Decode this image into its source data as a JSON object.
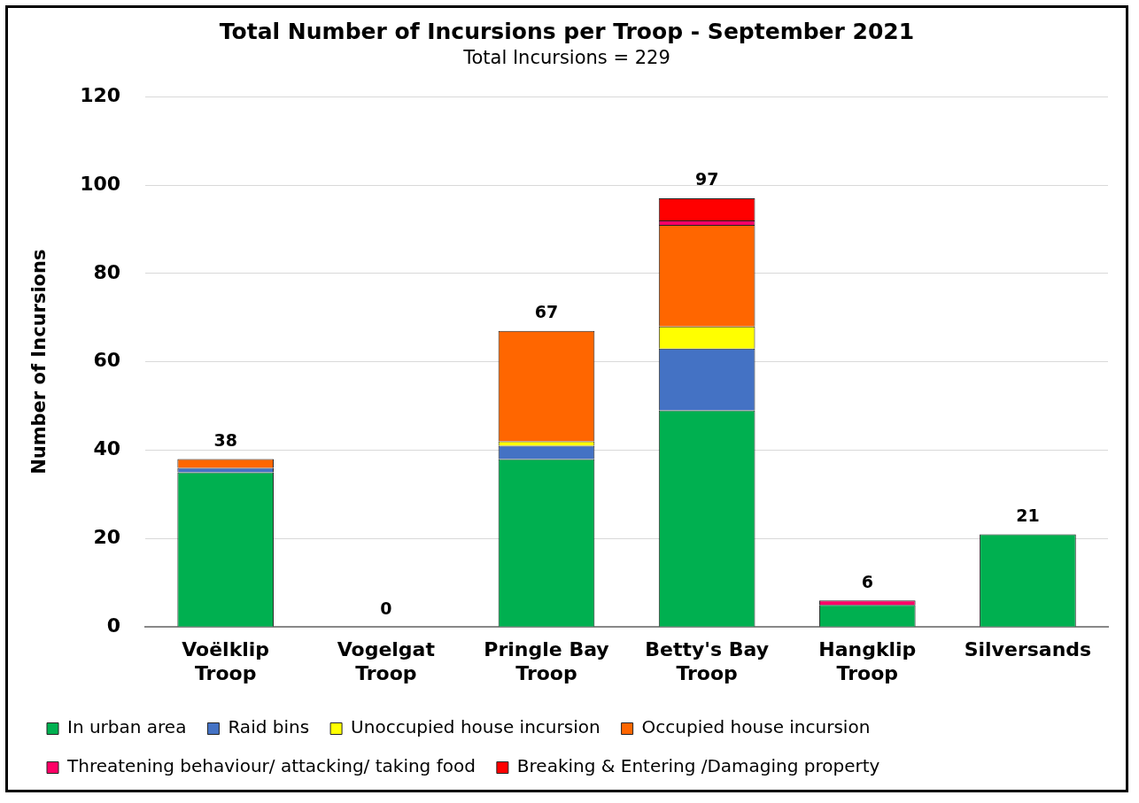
{
  "chart_data": {
    "type": "bar",
    "title": "Total Number of Incursions per Troop - September 2021",
    "subtitle": "Total Incursions = 229",
    "ylabel": "Number of Incursions",
    "categories": [
      "Voëlklip Troop",
      "Vogelgat Troop",
      "Pringle Bay Troop",
      "Betty's Bay Troop",
      "Hangklip Troop",
      "Silversands"
    ],
    "stacked": true,
    "series": [
      {
        "name": "In urban area",
        "color": "#00b050",
        "values": [
          35,
          0,
          38,
          49,
          5,
          21
        ]
      },
      {
        "name": "Raid bins",
        "color": "#4472c4",
        "values": [
          1,
          0,
          3,
          14,
          0,
          0
        ]
      },
      {
        "name": "Unoccupied house incursion",
        "color": "#ffff00",
        "values": [
          0,
          0,
          1,
          5,
          0,
          0
        ]
      },
      {
        "name": "Occupied house incursion",
        "color": "#ff6600",
        "values": [
          2,
          0,
          25,
          23,
          0,
          0
        ]
      },
      {
        "name": "Threatening behaviour/ attacking/ taking food",
        "color": "#ff0066",
        "values": [
          0,
          0,
          0,
          1,
          1,
          0
        ]
      },
      {
        "name": "Breaking & Entering /Damaging property",
        "color": "#ff0000",
        "values": [
          0,
          0,
          0,
          5,
          0,
          0
        ]
      }
    ],
    "totals": [
      "38",
      "0",
      "67",
      "97",
      "6",
      "21"
    ],
    "ylim": [
      0,
      120
    ],
    "yticks": [
      0,
      20,
      40,
      60,
      80,
      100,
      120
    ],
    "grid": "y",
    "legend": "bottom"
  }
}
